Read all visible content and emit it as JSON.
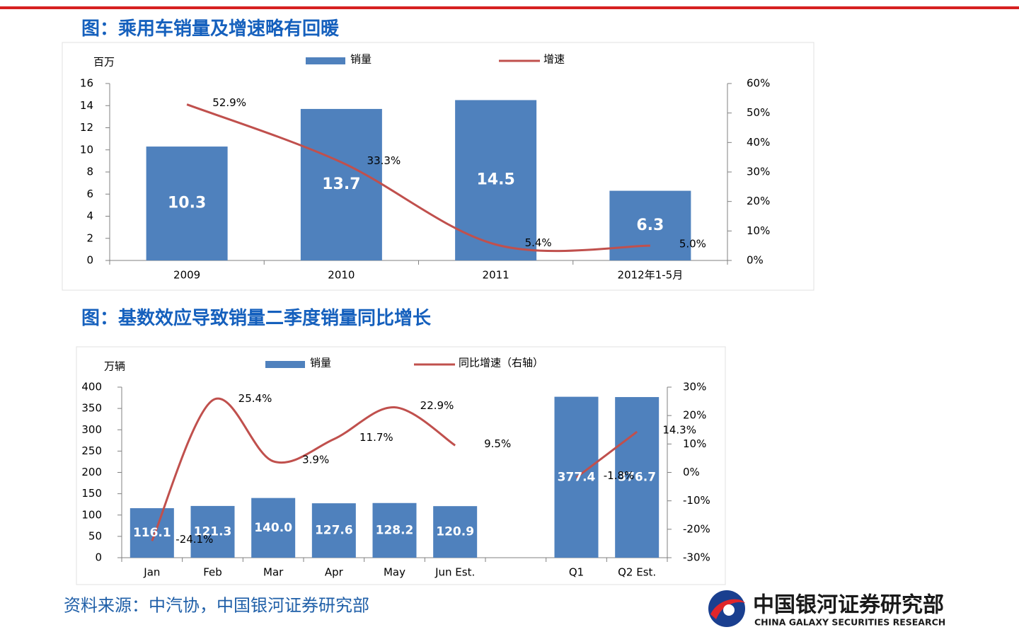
{
  "chart_data": [
    {
      "type": "bar",
      "title": "图：乘用车销量及增速略有回暖",
      "y_label": "百万",
      "categories": [
        "2009",
        "2010",
        "2011",
        "2012年1-5月"
      ],
      "series": [
        {
          "name": "销量",
          "color": "#4f81bd",
          "values": [
            10.3,
            13.7,
            14.5,
            6.3
          ],
          "value_labels": [
            "10.3",
            "13.7",
            "14.5",
            "6.3"
          ]
        },
        {
          "name": "增速",
          "type": "line",
          "axis": "y2",
          "color": "#c0504d",
          "values": [
            52.9,
            33.3,
            5.4,
            5.0
          ],
          "value_labels": [
            "52.9%",
            "33.3%",
            "5.4%",
            "5.0%"
          ]
        }
      ],
      "ylim": [
        0,
        16
      ],
      "yticks": [
        0,
        2,
        4,
        6,
        8,
        10,
        12,
        14,
        16
      ],
      "y2lim": [
        0,
        60
      ],
      "y2ticks": [
        {
          "value": 0,
          "label": "0%"
        },
        {
          "value": 10,
          "label": "10%"
        },
        {
          "value": 20,
          "label": "20%"
        },
        {
          "value": 30,
          "label": "30%"
        },
        {
          "value": 40,
          "label": "40%"
        },
        {
          "value": 50,
          "label": "50%"
        },
        {
          "value": 60,
          "label": "60%"
        }
      ],
      "grid": false
    },
    {
      "type": "bar",
      "title": "图：基数效应导致销量二季度销量同比增长",
      "y_label": "万辆",
      "categories": [
        "Jan",
        "Feb",
        "Mar",
        "Apr",
        "May",
        "Jun Est.",
        null,
        "Q1",
        "Q2 Est."
      ],
      "series": [
        {
          "name": "销量",
          "color": "#4f81bd",
          "values": [
            116.1,
            121.3,
            140.0,
            127.6,
            128.2,
            120.9,
            null,
            377.4,
            376.7
          ],
          "value_labels": [
            "116.1",
            "121.3",
            "140.0",
            "127.6",
            "128.2",
            "120.9",
            null,
            "377.4",
            "376.7"
          ]
        },
        {
          "name": "同比增速（右轴）",
          "type": "line",
          "axis": "y2",
          "color": "#c0504d",
          "values": [
            -24.1,
            25.4,
            3.9,
            11.7,
            22.9,
            9.5,
            null,
            -1.8,
            14.3
          ],
          "value_labels": [
            "-24.1%",
            "25.4%",
            "3.9%",
            "11.7%",
            "22.9%",
            "9.5%",
            null,
            "-1.8%",
            "14.3%"
          ]
        }
      ],
      "ylim": [
        0,
        400
      ],
      "yticks": [
        0,
        50,
        100,
        150,
        200,
        250,
        300,
        350,
        400
      ],
      "y2lim": [
        -30,
        30
      ],
      "y2ticks": [
        {
          "value": -30,
          "label": "-30%"
        },
        {
          "value": -20,
          "label": "-20%"
        },
        {
          "value": -10,
          "label": "-10%"
        },
        {
          "value": 0,
          "label": "0%"
        },
        {
          "value": 10,
          "label": "10%"
        },
        {
          "value": 20,
          "label": "20%"
        },
        {
          "value": 30,
          "label": "30%"
        }
      ],
      "grid": false
    }
  ],
  "source": "资料来源：中汽协，中国银河证券研究部",
  "logo": {
    "name": "中国银河证券研究部",
    "name_en": "CHINA GALAXY SECURITIES RESEARCH"
  }
}
